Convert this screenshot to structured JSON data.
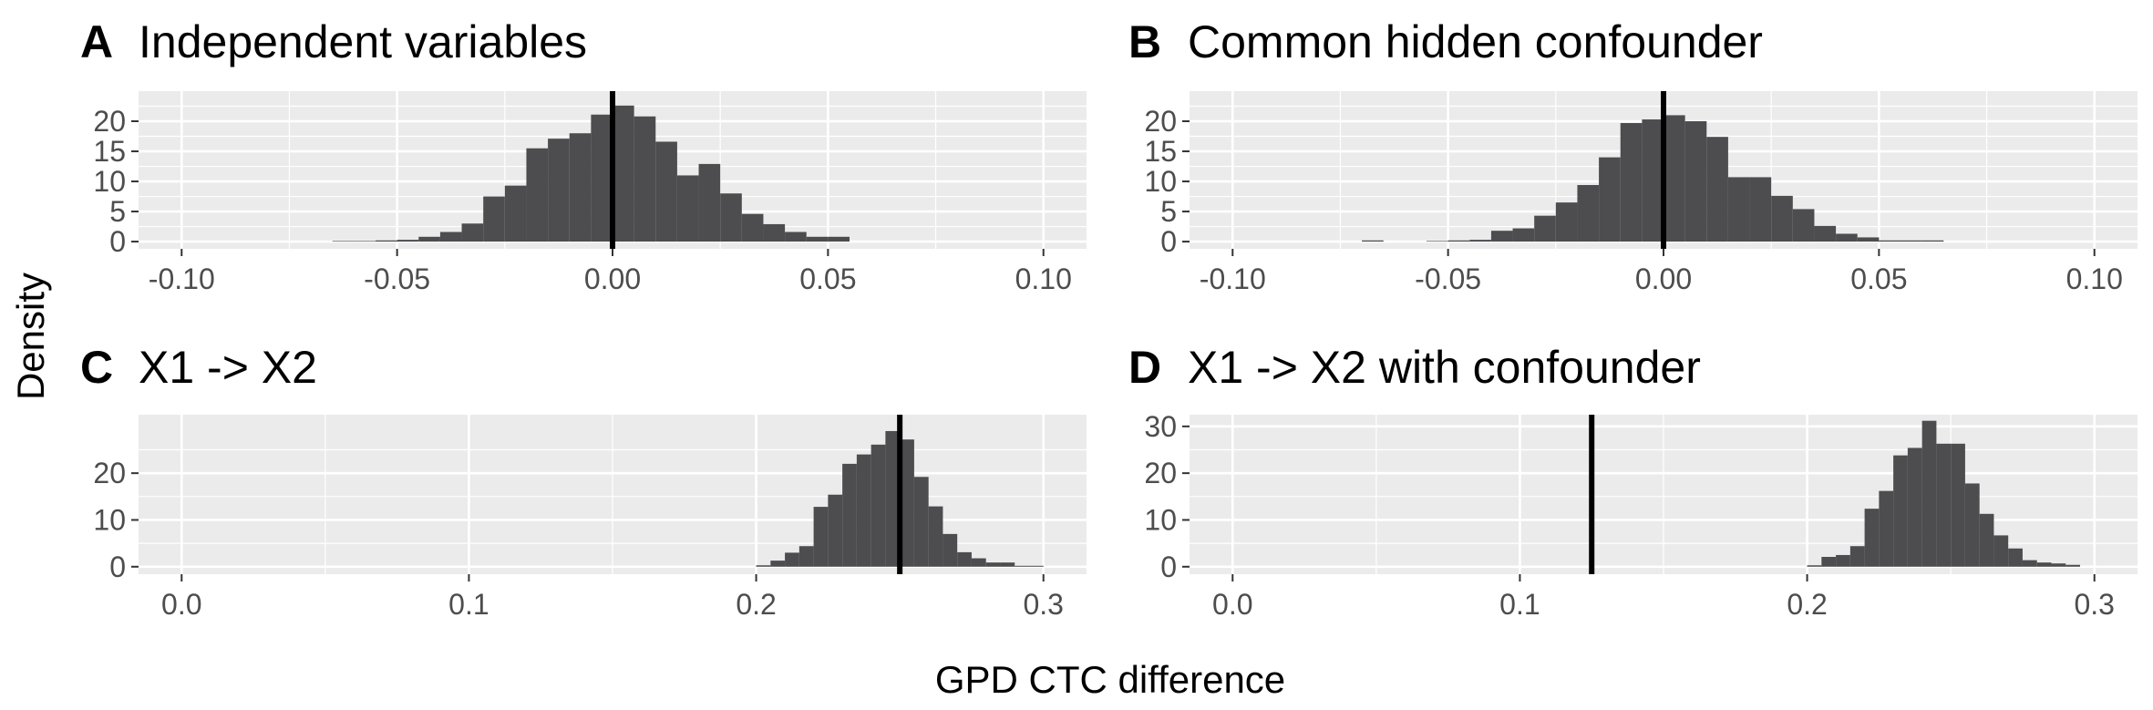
{
  "figure": {
    "ylabel": "Density",
    "xlabel": "GPD CTC difference"
  },
  "colors": {
    "panel_background": "#ebebeb",
    "grid": "#ffffff",
    "bars": "#4d4c4f",
    "reference_line": "#000000",
    "tick_text": "#4d4d4d"
  },
  "chart_data": [
    {
      "type": "histogram",
      "letter": "A",
      "title": "Independent variables",
      "xlim": [
        -0.11,
        0.11
      ],
      "ylim": [
        -1.2,
        25
      ],
      "xticks": [
        -0.1,
        -0.05,
        0.0,
        0.05,
        0.1
      ],
      "xtick_labels": [
        "-0.10",
        "-0.05",
        "0.00",
        "0.05",
        "0.10"
      ],
      "yticks": [
        0,
        5,
        10,
        15,
        20
      ],
      "ytick_labels": [
        "0",
        "5",
        "10",
        "15",
        "20"
      ],
      "reference_line_x": 0.0,
      "bin_width": 0.005,
      "bins": [
        {
          "x0": -0.065,
          "density": 0.1
        },
        {
          "x0": -0.06,
          "density": 0.1
        },
        {
          "x0": -0.055,
          "density": 0.2
        },
        {
          "x0": -0.05,
          "density": 0.3
        },
        {
          "x0": -0.045,
          "density": 0.8
        },
        {
          "x0": -0.04,
          "density": 1.6
        },
        {
          "x0": -0.035,
          "density": 3.0
        },
        {
          "x0": -0.03,
          "density": 7.5
        },
        {
          "x0": -0.025,
          "density": 9.3
        },
        {
          "x0": -0.02,
          "density": 15.5
        },
        {
          "x0": -0.015,
          "density": 17.1
        },
        {
          "x0": -0.01,
          "density": 18.0
        },
        {
          "x0": -0.005,
          "density": 21.1
        },
        {
          "x0": 0.0,
          "density": 22.6
        },
        {
          "x0": 0.005,
          "density": 20.8
        },
        {
          "x0": 0.01,
          "density": 16.6
        },
        {
          "x0": 0.015,
          "density": 11.0
        },
        {
          "x0": 0.02,
          "density": 12.9
        },
        {
          "x0": 0.025,
          "density": 8.0
        },
        {
          "x0": 0.03,
          "density": 4.6
        },
        {
          "x0": 0.035,
          "density": 2.9
        },
        {
          "x0": 0.04,
          "density": 1.6
        },
        {
          "x0": 0.045,
          "density": 0.8
        },
        {
          "x0": 0.05,
          "density": 0.8
        }
      ]
    },
    {
      "type": "histogram",
      "letter": "B",
      "title": "Common hidden confounder",
      "xlim": [
        -0.11,
        0.11
      ],
      "ylim": [
        -1.2,
        25
      ],
      "xticks": [
        -0.1,
        -0.05,
        0.0,
        0.05,
        0.1
      ],
      "xtick_labels": [
        "-0.10",
        "-0.05",
        "0.00",
        "0.05",
        "0.10"
      ],
      "yticks": [
        0,
        5,
        10,
        15,
        20
      ],
      "ytick_labels": [
        "0",
        "5",
        "10",
        "15",
        "20"
      ],
      "reference_line_x": 0.0,
      "bin_width": 0.005,
      "bins": [
        {
          "x0": -0.07,
          "density": 0.2
        },
        {
          "x0": -0.055,
          "density": 0.1
        },
        {
          "x0": -0.05,
          "density": 0.2
        },
        {
          "x0": -0.045,
          "density": 0.3
        },
        {
          "x0": -0.04,
          "density": 1.8
        },
        {
          "x0": -0.035,
          "density": 2.2
        },
        {
          "x0": -0.03,
          "density": 4.3
        },
        {
          "x0": -0.025,
          "density": 6.5
        },
        {
          "x0": -0.02,
          "density": 9.4
        },
        {
          "x0": -0.015,
          "density": 14.0
        },
        {
          "x0": -0.01,
          "density": 19.7
        },
        {
          "x0": -0.005,
          "density": 20.3
        },
        {
          "x0": 0.0,
          "density": 21.0
        },
        {
          "x0": 0.005,
          "density": 20.0
        },
        {
          "x0": 0.01,
          "density": 17.4
        },
        {
          "x0": 0.015,
          "density": 10.7
        },
        {
          "x0": 0.02,
          "density": 10.7
        },
        {
          "x0": 0.025,
          "density": 7.6
        },
        {
          "x0": 0.03,
          "density": 5.4
        },
        {
          "x0": 0.035,
          "density": 2.6
        },
        {
          "x0": 0.04,
          "density": 1.3
        },
        {
          "x0": 0.045,
          "density": 0.7
        },
        {
          "x0": 0.05,
          "density": 0.2
        },
        {
          "x0": 0.055,
          "density": 0.2
        },
        {
          "x0": 0.06,
          "density": 0.2
        }
      ]
    },
    {
      "type": "histogram",
      "letter": "C",
      "title": "X1 -> X2",
      "xlim": [
        -0.015,
        0.315
      ],
      "ylim": [
        -1.6,
        32.5
      ],
      "xticks": [
        0.0,
        0.1,
        0.2,
        0.3
      ],
      "xtick_labels": [
        "0.0",
        "0.1",
        "0.2",
        "0.3"
      ],
      "yticks": [
        0,
        10,
        20
      ],
      "ytick_labels": [
        "0",
        "10",
        "20"
      ],
      "reference_line_x": 0.25,
      "bin_width": 0.005,
      "bins": [
        {
          "x0": 0.2,
          "density": 0.3
        },
        {
          "x0": 0.205,
          "density": 1.3
        },
        {
          "x0": 0.21,
          "density": 3.0
        },
        {
          "x0": 0.215,
          "density": 4.4
        },
        {
          "x0": 0.22,
          "density": 12.8
        },
        {
          "x0": 0.225,
          "density": 15.4
        },
        {
          "x0": 0.23,
          "density": 22.0
        },
        {
          "x0": 0.235,
          "density": 24.0
        },
        {
          "x0": 0.24,
          "density": 26.1
        },
        {
          "x0": 0.245,
          "density": 29.0
        },
        {
          "x0": 0.25,
          "density": 27.2
        },
        {
          "x0": 0.255,
          "density": 19.2
        },
        {
          "x0": 0.26,
          "density": 12.9
        },
        {
          "x0": 0.265,
          "density": 7.0
        },
        {
          "x0": 0.27,
          "density": 3.1
        },
        {
          "x0": 0.275,
          "density": 1.8
        },
        {
          "x0": 0.28,
          "density": 0.9
        },
        {
          "x0": 0.285,
          "density": 0.9
        },
        {
          "x0": 0.29,
          "density": 0.2
        },
        {
          "x0": 0.295,
          "density": 0.2
        }
      ]
    },
    {
      "type": "histogram",
      "letter": "D",
      "title": "X1 -> X2 with confounder",
      "xlim": [
        -0.015,
        0.315
      ],
      "ylim": [
        -1.6,
        32.5
      ],
      "xticks": [
        0.0,
        0.1,
        0.2,
        0.3
      ],
      "xtick_labels": [
        "0.0",
        "0.1",
        "0.2",
        "0.3"
      ],
      "yticks": [
        0,
        10,
        20,
        30
      ],
      "ytick_labels": [
        "0",
        "10",
        "20",
        "30"
      ],
      "reference_line_x": 0.125,
      "bin_width": 0.005,
      "bins": [
        {
          "x0": 0.2,
          "density": 0.3
        },
        {
          "x0": 0.205,
          "density": 2.1
        },
        {
          "x0": 0.21,
          "density": 2.5
        },
        {
          "x0": 0.215,
          "density": 4.4
        },
        {
          "x0": 0.22,
          "density": 12.4
        },
        {
          "x0": 0.225,
          "density": 16.2
        },
        {
          "x0": 0.23,
          "density": 23.8
        },
        {
          "x0": 0.235,
          "density": 25.4
        },
        {
          "x0": 0.24,
          "density": 31.2
        },
        {
          "x0": 0.245,
          "density": 26.3
        },
        {
          "x0": 0.25,
          "density": 26.3
        },
        {
          "x0": 0.255,
          "density": 17.8
        },
        {
          "x0": 0.26,
          "density": 11.3
        },
        {
          "x0": 0.265,
          "density": 6.7
        },
        {
          "x0": 0.27,
          "density": 3.9
        },
        {
          "x0": 0.275,
          "density": 1.4
        },
        {
          "x0": 0.28,
          "density": 0.9
        },
        {
          "x0": 0.285,
          "density": 0.7
        },
        {
          "x0": 0.29,
          "density": 0.4
        }
      ]
    }
  ]
}
